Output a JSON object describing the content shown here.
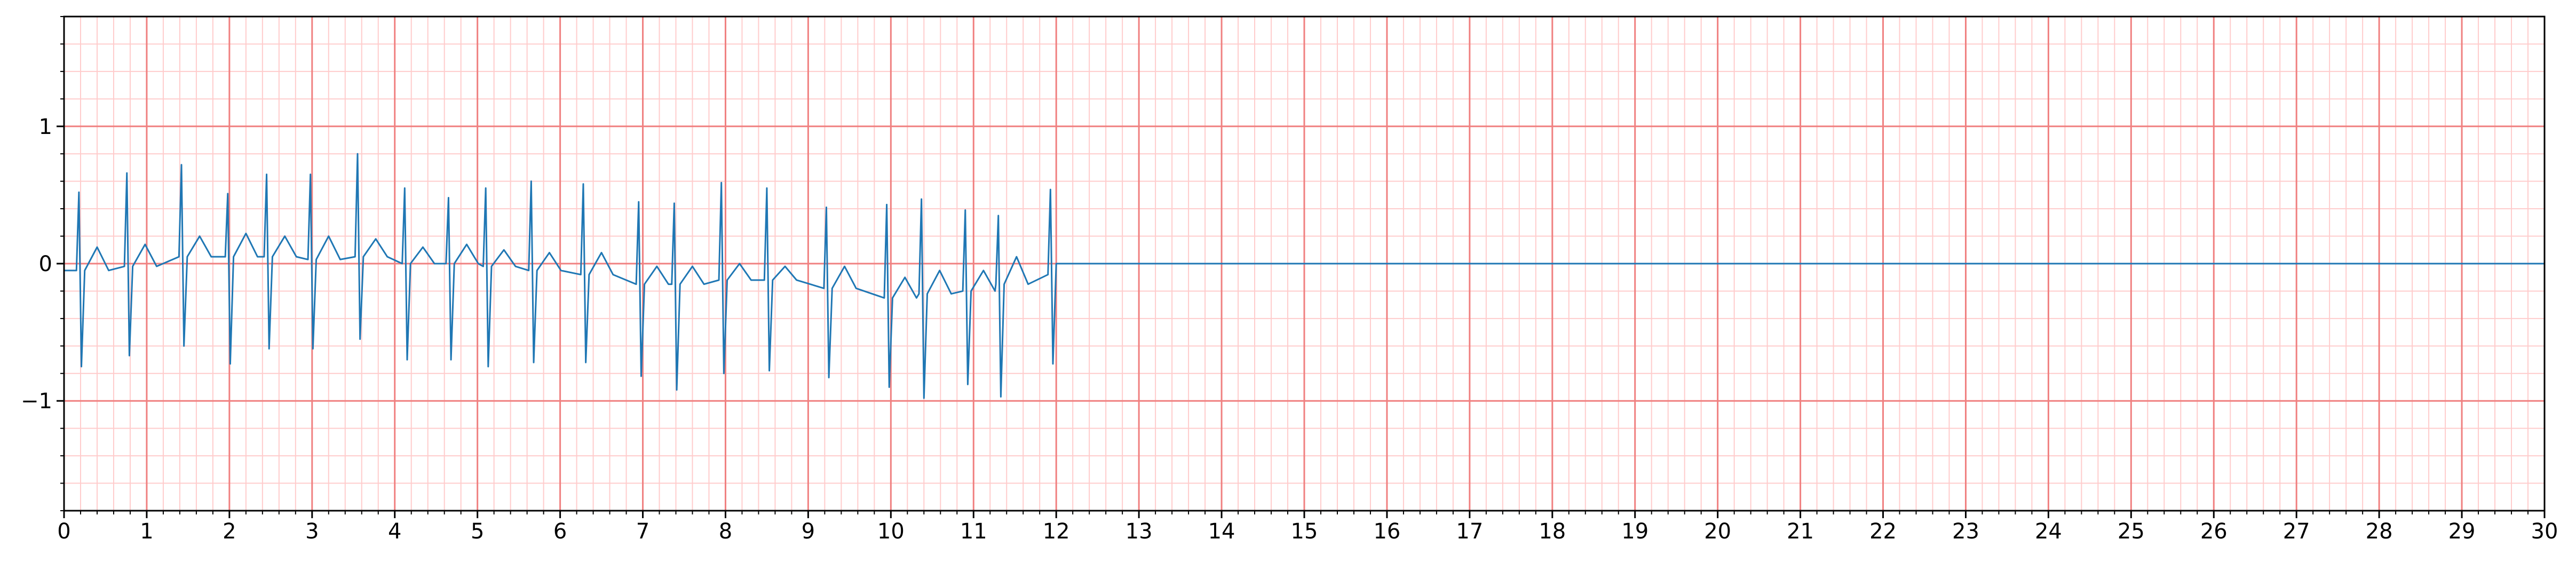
{
  "chart_data": {
    "type": "line",
    "color": "#1f77b4",
    "x": [
      0,
      0.15,
      0.18,
      0.21,
      0.25,
      0.4,
      0.54,
      0.73,
      0.76,
      0.79,
      0.83,
      0.98,
      1.12,
      1.39,
      1.42,
      1.45,
      1.49,
      1.64,
      1.78,
      1.95,
      1.98,
      2.01,
      2.05,
      2.2,
      2.34,
      2.42,
      2.45,
      2.48,
      2.52,
      2.67,
      2.81,
      2.95,
      2.98,
      3.01,
      3.05,
      3.2,
      3.34,
      3.52,
      3.55,
      3.58,
      3.62,
      3.77,
      3.91,
      4.09,
      4.12,
      4.15,
      4.19,
      4.34,
      4.48,
      4.62,
      4.65,
      4.68,
      4.72,
      4.87,
      5.01,
      5.07,
      5.1,
      5.13,
      5.17,
      5.32,
      5.46,
      5.62,
      5.65,
      5.68,
      5.72,
      5.87,
      6.01,
      6.25,
      6.28,
      6.31,
      6.35,
      6.5,
      6.64,
      6.92,
      6.95,
      6.98,
      7.02,
      7.17,
      7.31,
      7.35,
      7.38,
      7.41,
      7.45,
      7.6,
      7.74,
      7.92,
      7.95,
      7.98,
      8.02,
      8.17,
      8.31,
      8.47,
      8.5,
      8.53,
      8.57,
      8.72,
      8.86,
      9.19,
      9.22,
      9.25,
      9.29,
      9.44,
      9.58,
      9.92,
      9.95,
      9.98,
      10.02,
      10.17,
      10.31,
      10.34,
      10.37,
      10.4,
      10.44,
      10.59,
      10.73,
      10.87,
      10.9,
      10.93,
      10.97,
      11.12,
      11.26,
      11.27,
      11.3,
      11.33,
      11.37,
      11.52,
      11.66,
      11.9,
      11.93,
      11.96,
      12.0,
      30
    ],
    "values": [
      -0.05,
      -0.05,
      0.52,
      -0.75,
      -0.05,
      0.12,
      -0.05,
      -0.02,
      0.66,
      -0.67,
      -0.02,
      0.14,
      -0.02,
      0.05,
      0.72,
      -0.6,
      0.05,
      0.2,
      0.05,
      0.05,
      0.51,
      -0.73,
      0.05,
      0.22,
      0.05,
      0.05,
      0.65,
      -0.62,
      0.05,
      0.2,
      0.05,
      0.03,
      0.65,
      -0.62,
      0.03,
      0.2,
      0.03,
      0.05,
      0.8,
      -0.55,
      0.05,
      0.18,
      0.05,
      0,
      0.55,
      -0.7,
      0,
      0.12,
      0,
      0,
      0.48,
      -0.7,
      0,
      0.14,
      0,
      -0.02,
      0.55,
      -0.75,
      -0.02,
      0.1,
      -0.02,
      -0.05,
      0.6,
      -0.72,
      -0.05,
      0.08,
      -0.05,
      -0.08,
      0.58,
      -0.72,
      -0.08,
      0.08,
      -0.08,
      -0.15,
      0.45,
      -0.82,
      -0.15,
      -0.02,
      -0.15,
      -0.15,
      0.44,
      -0.92,
      -0.15,
      -0.02,
      -0.15,
      -0.12,
      0.59,
      -0.8,
      -0.12,
      0,
      -0.12,
      -0.12,
      0.55,
      -0.78,
      -0.12,
      -0.02,
      -0.12,
      -0.18,
      0.41,
      -0.83,
      -0.18,
      -0.02,
      -0.18,
      -0.25,
      0.43,
      -0.9,
      -0.25,
      -0.1,
      -0.25,
      -0.22,
      0.47,
      -0.98,
      -0.22,
      -0.05,
      -0.22,
      -0.2,
      0.39,
      -0.88,
      -0.2,
      -0.05,
      -0.2,
      -0.15,
      0.35,
      -0.97,
      -0.15,
      0.05,
      -0.15,
      -0.08,
      0.54,
      -0.73,
      0,
      0
    ],
    "xlim": [
      0,
      30
    ],
    "ylim": [
      -1.8,
      1.8
    ],
    "xticks": [
      0,
      1,
      2,
      3,
      4,
      5,
      6,
      7,
      8,
      9,
      10,
      11,
      12,
      13,
      14,
      15,
      16,
      17,
      18,
      19,
      20,
      21,
      22,
      23,
      24,
      25,
      26,
      27,
      28,
      29,
      30
    ],
    "yticks": [
      {
        "value": -1,
        "label": "−1"
      },
      0,
      1
    ],
    "grid": true,
    "grid_color": "#f08080",
    "xminor": 0.2,
    "yminor": 0.2,
    "minor_grid_color": "#ffcccc"
  }
}
